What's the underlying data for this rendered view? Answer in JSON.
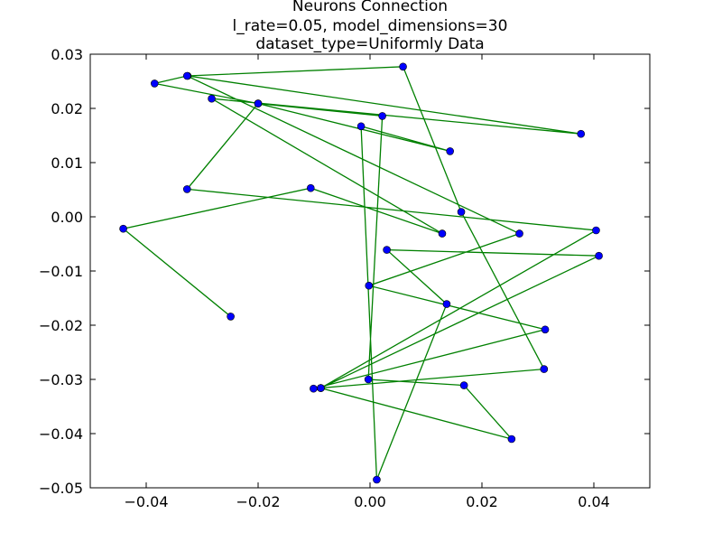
{
  "chart_data": {
    "type": "line",
    "title_lines": [
      "Neurons Connection",
      "l_rate=0.05, model_dimensions=30",
      "dataset_type=Uniformly Data"
    ],
    "xlim": [
      -0.05,
      0.05
    ],
    "ylim": [
      -0.05,
      0.03
    ],
    "xticks": [
      -0.04,
      -0.02,
      0.0,
      0.02,
      0.04
    ],
    "xtick_labels": [
      "−0.04",
      "−0.02",
      "0.00",
      "0.02",
      "0.04"
    ],
    "yticks": [
      0.03,
      0.02,
      0.01,
      0.0,
      -0.01,
      -0.02,
      -0.03,
      -0.04,
      -0.05
    ],
    "ytick_labels": [
      "0.03",
      "0.02",
      "0.01",
      "0.00",
      "−0.01",
      "−0.02",
      "−0.03",
      "−0.04",
      "−0.05"
    ],
    "grid": false,
    "line_color": "#008000",
    "marker_color": "#0000ff",
    "x": [
      -0.0249,
      -0.0441,
      -0.0106,
      0.0129,
      -0.0283,
      0.0377,
      -0.0326,
      0.0059,
      0.0163,
      0.0311,
      -0.0101,
      0.0313,
      -0.0002,
      0.0267,
      -0.0327,
      -0.0385,
      -0.02,
      0.0143,
      -0.0016,
      0.0012,
      0.0137,
      0.003,
      0.0409,
      -0.0088,
      0.0404,
      -0.0327,
      -0.02,
      0.0022,
      -0.0003,
      0.0168,
      0.0253,
      -0.0088
    ],
    "y": [
      -0.0184,
      -0.0022,
      0.0053,
      -0.0031,
      0.0218,
      0.0153,
      0.026,
      0.0277,
      0.0009,
      -0.0281,
      -0.0317,
      -0.0208,
      -0.0127,
      -0.0031,
      0.026,
      0.0246,
      0.0209,
      0.0121,
      0.0167,
      -0.0485,
      -0.0161,
      -0.0061,
      -0.0072,
      -0.0316,
      -0.0025,
      0.0051,
      0.0209,
      0.0186,
      -0.03,
      -0.0311,
      -0.041,
      -0.0316
    ]
  }
}
